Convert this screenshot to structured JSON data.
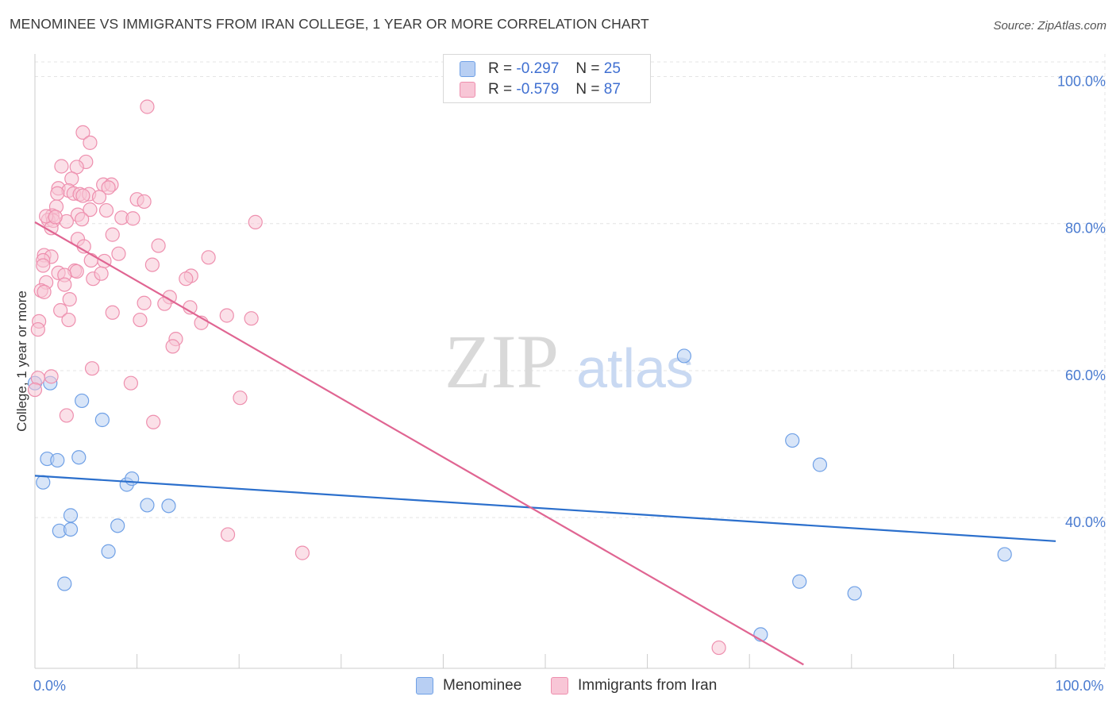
{
  "chart_data": {
    "type": "scatter",
    "title": "MENOMINEE VS IMMIGRANTS FROM IRAN COLLEGE, 1 YEAR OR MORE CORRELATION CHART",
    "source": "Source: ZipAtlas.com",
    "watermark": {
      "zip": "ZIP",
      "atlas": "atlas"
    },
    "xlabel": "",
    "ylabel": "College, 1 year or more",
    "xlim": [
      0,
      100
    ],
    "ylim": [
      19.5,
      102
    ],
    "x_tick_labels": [
      {
        "value": 0,
        "label": "0.0%"
      },
      {
        "value": 100,
        "label": "100.0%"
      }
    ],
    "y_tick_labels": [
      {
        "value": 40,
        "label": "40.0%"
      },
      {
        "value": 60,
        "label": "60.0%"
      },
      {
        "value": 80,
        "label": "80.0%"
      },
      {
        "value": 100,
        "label": "100.0%"
      }
    ],
    "x_minor_ticks": [
      10,
      20,
      30,
      40,
      50,
      60,
      70,
      80,
      90
    ],
    "grid": true,
    "legend": [
      {
        "series": "Menominee",
        "r_label": "R =",
        "r_value": "-0.297",
        "n_label": "N =",
        "n_value": "25"
      },
      {
        "series": "Immigrants from Iran",
        "r_label": "R =",
        "r_value": "-0.579",
        "n_label": "N =",
        "n_value": "87"
      }
    ],
    "series": [
      {
        "name": "Menominee",
        "color": "#6fa0e6",
        "fill": "#b8cff3",
        "line_color": "#2b6fcc",
        "trend": {
          "x": [
            0,
            100
          ],
          "y": [
            45.7,
            36.8
          ]
        },
        "points": [
          [
            0.0,
            58.3
          ],
          [
            1.5,
            58.3
          ],
          [
            0.8,
            44.8
          ],
          [
            1.2,
            48.0
          ],
          [
            2.2,
            47.8
          ],
          [
            4.3,
            48.2
          ],
          [
            4.6,
            55.9
          ],
          [
            6.6,
            53.3
          ],
          [
            9.0,
            44.5
          ],
          [
            9.5,
            45.3
          ],
          [
            11.0,
            41.7
          ],
          [
            13.1,
            41.6
          ],
          [
            3.5,
            40.3
          ],
          [
            2.4,
            38.2
          ],
          [
            3.5,
            38.4
          ],
          [
            8.1,
            38.9
          ],
          [
            7.2,
            35.4
          ],
          [
            2.9,
            31.0
          ],
          [
            63.6,
            62.0
          ],
          [
            74.2,
            50.5
          ],
          [
            76.9,
            47.2
          ],
          [
            74.9,
            31.3
          ],
          [
            80.3,
            29.7
          ],
          [
            95.0,
            35.0
          ],
          [
            71.1,
            24.1
          ]
        ]
      },
      {
        "name": "Immigrants from Iran",
        "color": "#ee8fae",
        "fill": "#f8c6d6",
        "line_color": "#e06592",
        "trend": {
          "x": [
            0,
            75.3
          ],
          "y": [
            80.2,
            20.0
          ]
        },
        "points": [
          [
            11.0,
            95.9
          ],
          [
            4.7,
            92.4
          ],
          [
            5.4,
            91.0
          ],
          [
            5.0,
            88.4
          ],
          [
            2.6,
            87.8
          ],
          [
            4.1,
            87.7
          ],
          [
            3.6,
            86.1
          ],
          [
            6.7,
            85.3
          ],
          [
            7.5,
            85.3
          ],
          [
            7.2,
            84.9
          ],
          [
            2.3,
            84.8
          ],
          [
            3.3,
            84.5
          ],
          [
            2.2,
            84.1
          ],
          [
            3.8,
            84.1
          ],
          [
            4.4,
            84.0
          ],
          [
            5.3,
            84.0
          ],
          [
            4.7,
            83.8
          ],
          [
            6.3,
            83.6
          ],
          [
            10.0,
            83.3
          ],
          [
            10.7,
            83.0
          ],
          [
            2.1,
            82.3
          ],
          [
            5.4,
            81.9
          ],
          [
            7.0,
            81.8
          ],
          [
            4.2,
            81.2
          ],
          [
            1.7,
            81.1
          ],
          [
            8.5,
            80.8
          ],
          [
            9.6,
            80.7
          ],
          [
            4.6,
            80.6
          ],
          [
            1.3,
            80.5
          ],
          [
            1.8,
            80.4
          ],
          [
            3.1,
            80.3
          ],
          [
            21.6,
            80.2
          ],
          [
            1.6,
            79.4
          ],
          [
            7.6,
            78.5
          ],
          [
            4.2,
            77.9
          ],
          [
            12.1,
            77.0
          ],
          [
            4.8,
            76.9
          ],
          [
            8.2,
            75.9
          ],
          [
            0.9,
            75.7
          ],
          [
            1.6,
            75.5
          ],
          [
            17.0,
            75.4
          ],
          [
            0.8,
            75.0
          ],
          [
            5.5,
            75.0
          ],
          [
            6.8,
            74.9
          ],
          [
            11.5,
            74.4
          ],
          [
            0.8,
            74.3
          ],
          [
            3.9,
            73.6
          ],
          [
            4.1,
            73.5
          ],
          [
            2.3,
            73.3
          ],
          [
            2.9,
            73.0
          ],
          [
            15.3,
            72.9
          ],
          [
            14.8,
            72.5
          ],
          [
            5.7,
            72.5
          ],
          [
            1.1,
            72.0
          ],
          [
            2.9,
            71.7
          ],
          [
            0.6,
            70.9
          ],
          [
            0.9,
            70.7
          ],
          [
            13.2,
            70.0
          ],
          [
            3.4,
            69.7
          ],
          [
            10.7,
            69.2
          ],
          [
            12.7,
            69.1
          ],
          [
            15.2,
            68.6
          ],
          [
            2.5,
            68.2
          ],
          [
            7.6,
            67.9
          ],
          [
            18.8,
            67.5
          ],
          [
            21.2,
            67.1
          ],
          [
            3.3,
            66.9
          ],
          [
            10.3,
            66.9
          ],
          [
            16.3,
            66.5
          ],
          [
            0.4,
            66.7
          ],
          [
            0.3,
            65.6
          ],
          [
            13.8,
            64.3
          ],
          [
            13.5,
            63.3
          ],
          [
            5.6,
            60.3
          ],
          [
            1.6,
            59.2
          ],
          [
            0.3,
            59.0
          ],
          [
            9.4,
            58.3
          ],
          [
            0.0,
            57.4
          ],
          [
            20.1,
            56.3
          ],
          [
            3.1,
            53.9
          ],
          [
            11.6,
            53.0
          ],
          [
            18.9,
            37.7
          ],
          [
            26.2,
            35.2
          ],
          [
            67.0,
            22.3
          ],
          [
            1.1,
            81.0
          ],
          [
            2.0,
            80.9
          ],
          [
            6.5,
            73.2
          ]
        ]
      }
    ]
  },
  "layout_colors": {
    "grid": "#e4e4e4",
    "axis": "#cccccc",
    "tick_label": "#4a7bd0",
    "watermark_zip": "#d9d9d9",
    "watermark_atlas": "#c9d9f2"
  }
}
